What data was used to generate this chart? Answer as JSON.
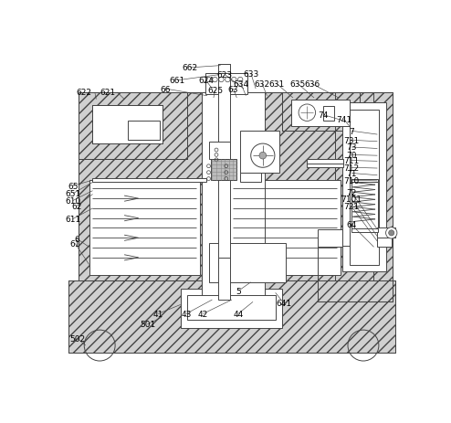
{
  "fig_w": 4.94,
  "fig_h": 4.64,
  "dpi": 100,
  "lc": "#444444",
  "lw": 0.7,
  "hatch_fc": "#d0d0d0",
  "labels": [
    [
      "6",
      27,
      268
    ],
    [
      "62",
      27,
      222
    ],
    [
      "65",
      22,
      193
    ],
    [
      "651",
      22,
      204
    ],
    [
      "610",
      22,
      214
    ],
    [
      "611",
      22,
      240
    ],
    [
      "61",
      25,
      275
    ],
    [
      "622",
      38,
      60
    ],
    [
      "621",
      72,
      60
    ],
    [
      "66",
      153,
      55
    ],
    [
      "661",
      170,
      43
    ],
    [
      "662",
      188,
      25
    ],
    [
      "624",
      211,
      43
    ],
    [
      "625",
      224,
      57
    ],
    [
      "623",
      238,
      35
    ],
    [
      "63",
      250,
      55
    ],
    [
      "634",
      261,
      48
    ],
    [
      "633",
      275,
      33
    ],
    [
      "632",
      291,
      48
    ],
    [
      "631",
      312,
      48
    ],
    [
      "635",
      342,
      48
    ],
    [
      "636",
      362,
      48
    ],
    [
      "74",
      378,
      92
    ],
    [
      "741",
      407,
      98
    ],
    [
      "7",
      418,
      115
    ],
    [
      "731",
      418,
      128
    ],
    [
      "73",
      418,
      138
    ],
    [
      "70",
      418,
      149
    ],
    [
      "711",
      418,
      157
    ],
    [
      "712",
      418,
      167
    ],
    [
      "71",
      418,
      175
    ],
    [
      "710",
      418,
      185
    ],
    [
      "72",
      418,
      202
    ],
    [
      "7101",
      418,
      212
    ],
    [
      "721",
      418,
      222
    ],
    [
      "64",
      418,
      248
    ],
    [
      "5",
      258,
      342
    ],
    [
      "41",
      143,
      375
    ],
    [
      "43",
      183,
      375
    ],
    [
      "42",
      207,
      375
    ],
    [
      "44",
      257,
      375
    ],
    [
      "641",
      322,
      360
    ],
    [
      "501",
      128,
      390
    ],
    [
      "502",
      28,
      410
    ]
  ]
}
